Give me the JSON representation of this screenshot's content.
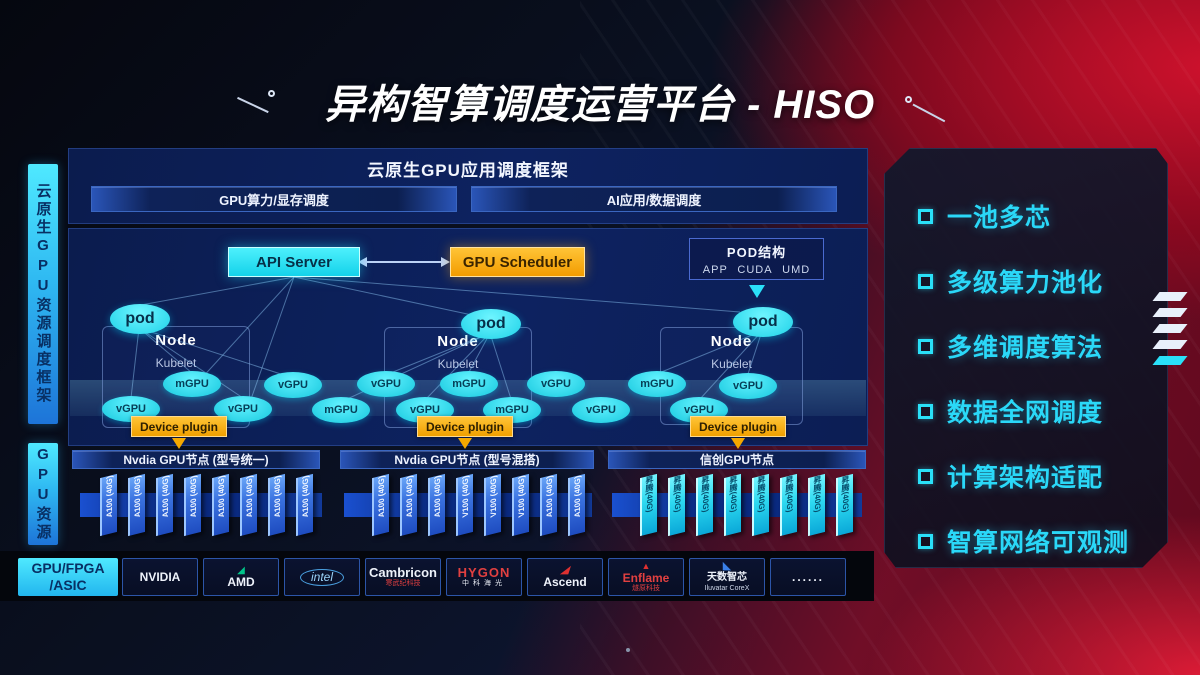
{
  "title": "异构智算调度运营平台 - HISO",
  "left_bars": {
    "top": "云原生GPU资源调度框架",
    "bottom": "GPU资源"
  },
  "framework": {
    "title": "云原生GPU应用调度框架",
    "left_item": "GPU算力/显存调度",
    "right_item": "AI应用/数据调度"
  },
  "control": {
    "api_server": "API Server",
    "gpu_scheduler": "GPU Scheduler"
  },
  "pod_structure": {
    "title": "POD结构",
    "items": [
      "APP",
      "CUDA",
      "UMD"
    ]
  },
  "nodes": {
    "node_label": "Node",
    "kubelet_label": "Kubelet",
    "pod_label": "pod",
    "device_plugin_label": "Device plugin",
    "count": 3
  },
  "gpu_ellipses": [
    "vGPU",
    "mGPU",
    "vGPU",
    "vGPU",
    "mGPU",
    "vGPU",
    "vGPU",
    "mGPU",
    "mGPU",
    "vGPU",
    "vGPU",
    "mGPU",
    "vGPU",
    "vGPU"
  ],
  "gpu_groups": [
    {
      "header": "Nvdia GPU节点 (型号统一)",
      "style": "blue",
      "cards": [
        "A100 (40G)",
        "A100 (40G)",
        "A100 (40G)",
        "A100 (40G)",
        "A100 (40G)",
        "A100 (40G)",
        "A100 (40G)",
        "A100 (40G)"
      ]
    },
    {
      "header": "Nvdia GPU节点 (型号混搭)",
      "style": "blue",
      "cards": [
        "A100 (40G)",
        "A100 (40G)",
        "A100 (40G)",
        "V100 (40G)",
        "V100 (40G)",
        "V100 (40G)",
        "A100 (40G)",
        "A100 (40G)"
      ]
    },
    {
      "header": "信创GPU节点",
      "style": "cyan",
      "cards": [
        "昇腾(40G)",
        "昇腾(40G)",
        "昇腾(40G)",
        "昇腾(40G)",
        "昇腾(40G)",
        "昇腾(40G)",
        "昇腾(40G)",
        "昇腾(40G)"
      ]
    }
  ],
  "vendors": {
    "first_line1": "GPU/FPGA",
    "first_line2": "/ASIC",
    "items": [
      {
        "id": "nvidia",
        "name": "NVIDIA",
        "sub": "",
        "color": "#76b900"
      },
      {
        "id": "amd",
        "name": "AMD",
        "sub": "",
        "color": "#00c389"
      },
      {
        "id": "intel",
        "name": "intel",
        "sub": "",
        "color": "#8ec8f2"
      },
      {
        "id": "cambricon",
        "name": "Cambricon",
        "sub": "寒武纪科技",
        "color": "#e03030"
      },
      {
        "id": "hygon",
        "name": "HYGON",
        "sub": "中科海光",
        "color": "#e03030"
      },
      {
        "id": "ascend",
        "name": "Ascend",
        "sub": "",
        "color": "#e03030"
      },
      {
        "id": "enflame",
        "name": "Enflame",
        "sub": "燧原科技",
        "color": "#e03030"
      },
      {
        "id": "iluvatar",
        "name": "天数智芯",
        "sub": "Iluvatar CoreX",
        "color": "#3a80e8"
      },
      {
        "id": "more",
        "name": "......",
        "sub": "",
        "color": "#ffffff"
      }
    ]
  },
  "features": {
    "items": [
      "一池多芯",
      "多级算力池化",
      "多维调度算法",
      "数据全网调度",
      "计算架构适配",
      "智算网络可观测"
    ]
  },
  "colors": {
    "accent_cyan": "#2ee4fa",
    "accent_orange": "#f7ab00",
    "panel_blue": "#0d2260",
    "background_red": "#b01028",
    "card_blue": "#3a72e0",
    "card_cyan": "#2cd8f0",
    "nvidia_green": "#76b900",
    "amd_green": "#00c389",
    "intel_blue": "#8ec8f2",
    "brand_red": "#e03030",
    "iluvatar_blue": "#3a80e8"
  }
}
